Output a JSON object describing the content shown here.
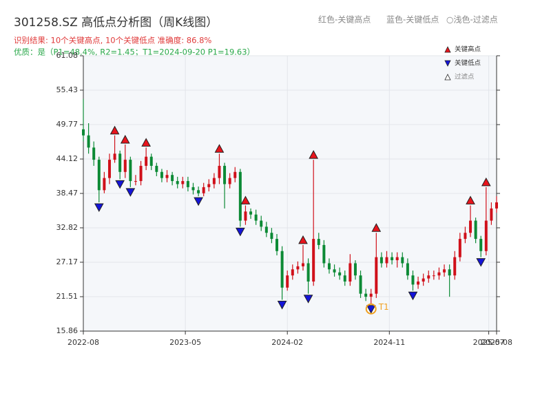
{
  "chart_data": {
    "type": "candlestick",
    "title": "301258.SZ 高低点分析图（周K线图）",
    "header_legend": [
      "红色-关键高点",
      "蓝色-关键低点",
      "○浅色-过滤点"
    ],
    "result_text": "识别结果: 10个关键高点, 10个关键低点  准确度: 86.8%",
    "quality_text": "优质：是（P1=48.4%, R2=1.45；T1=2024-09-20 P1=19.63）",
    "legend": [
      "关键高点",
      "关键低点",
      "过滤点"
    ],
    "up_color": "#d0101a",
    "down_color": "#0c8a35",
    "peak_color": "#e8141c",
    "trough_color": "#1414d8",
    "t1_color": "#f0a020",
    "x": [
      0,
      2,
      4,
      6,
      8,
      10,
      12,
      14,
      16,
      18,
      20,
      22,
      24,
      26,
      28,
      30,
      32,
      34,
      36,
      38,
      40,
      42,
      44,
      46,
      48,
      50,
      52,
      54,
      56,
      58,
      60,
      62,
      64,
      66,
      68,
      70,
      72,
      74,
      76,
      78,
      80,
      82,
      84,
      86,
      88,
      90,
      92,
      94,
      96,
      98,
      100,
      102,
      104,
      106,
      108,
      110,
      112,
      114,
      116,
      118,
      120,
      122,
      124,
      126,
      128,
      130,
      132,
      134,
      136,
      138,
      140,
      142,
      144,
      146,
      148,
      150,
      152,
      154,
      156,
      158
    ],
    "open": [
      49,
      48,
      46,
      44,
      39,
      41,
      44,
      45,
      42,
      44,
      40.5,
      40.5,
      43,
      44.5,
      43,
      42,
      41,
      41.5,
      40.5,
      40,
      40.5,
      39.5,
      39,
      38.5,
      39.5,
      40,
      41,
      43,
      40,
      41,
      42,
      34,
      35.5,
      35,
      34,
      33,
      32,
      31,
      29,
      23,
      25,
      26,
      26.5,
      27,
      24,
      31,
      30,
      27,
      26,
      25.5,
      25,
      24,
      27,
      25,
      22,
      21.5,
      22,
      28,
      27,
      28,
      27.5,
      28,
      27,
      25,
      23.5,
      24,
      24.5,
      25,
      25,
      25.5,
      26,
      25,
      28,
      31,
      32,
      34,
      31,
      29,
      34,
      36
    ],
    "close": [
      48,
      46,
      44,
      39,
      41,
      44,
      45,
      42,
      44,
      40.5,
      40.5,
      43,
      44.5,
      43,
      42,
      41,
      41.5,
      40.5,
      40,
      40.5,
      39.5,
      39,
      38.5,
      39.5,
      40,
      41,
      43,
      40,
      41,
      42,
      34,
      35.5,
      35,
      34,
      33,
      32,
      31,
      29,
      23,
      25,
      26,
      26.5,
      27,
      24,
      31,
      30,
      27,
      26,
      25.5,
      25,
      24,
      27,
      25,
      22,
      21.5,
      22,
      28,
      27,
      28,
      27.5,
      28,
      27,
      25,
      23.5,
      24,
      24.5,
      25,
      25,
      25.5,
      26,
      25,
      28,
      31,
      32,
      34,
      31,
      29,
      34,
      36,
      37
    ],
    "high": [
      54,
      50,
      47,
      44.5,
      42,
      45,
      48,
      45.5,
      46.5,
      44.5,
      41.5,
      43.8,
      46,
      45,
      43.5,
      42.5,
      42.3,
      42,
      41.2,
      41.2,
      41.2,
      40.2,
      39.6,
      40.2,
      40.8,
      41.8,
      45,
      43.5,
      41.8,
      42.8,
      42.5,
      36.5,
      36,
      35.8,
      34.8,
      33.8,
      32.8,
      31.8,
      29.8,
      25.8,
      26.8,
      27.3,
      30,
      27.8,
      44,
      32,
      30.8,
      27.8,
      26.8,
      26.3,
      25.8,
      28.5,
      27.5,
      25.8,
      22.8,
      22.8,
      32,
      28.8,
      29,
      28.8,
      28.8,
      28.8,
      27.8,
      25.8,
      24.8,
      25.3,
      25.8,
      25.8,
      26.3,
      26.8,
      26.8,
      29,
      32,
      33,
      36.5,
      34.5,
      31.5,
      39.5,
      37,
      38
    ],
    "low": [
      47,
      45,
      43,
      37,
      38.5,
      40,
      43.5,
      40.8,
      41,
      39.5,
      39.8,
      39.8,
      42.3,
      42.3,
      41.3,
      40.3,
      40.3,
      39.8,
      39.3,
      39.3,
      38.8,
      38.3,
      38,
      38,
      38.8,
      39.3,
      40,
      36,
      39.3,
      40.3,
      33,
      33.3,
      34.3,
      33.3,
      32.3,
      31.3,
      30.3,
      28.3,
      21,
      22.5,
      24.3,
      25.3,
      25.8,
      22,
      23.3,
      29.3,
      26.3,
      25.3,
      24.8,
      24.3,
      23.3,
      23.3,
      24.3,
      21.3,
      20.8,
      20.3,
      21.3,
      26.3,
      26.3,
      26.8,
      26.3,
      26.3,
      24.3,
      22.5,
      22.8,
      23.3,
      23.8,
      24.3,
      24.3,
      24.8,
      21.5,
      24.3,
      27.3,
      30.3,
      31.3,
      30.3,
      28,
      28.3,
      33.3,
      35.3
    ],
    "peaks": [
      6,
      8,
      12,
      26,
      31,
      42,
      44,
      56,
      74,
      77
    ],
    "troughs": [
      3,
      7,
      9,
      22,
      30,
      38,
      43,
      55,
      63,
      76
    ],
    "t1_index": 55,
    "t1_label": "T1",
    "xlim": [
      0,
      158
    ],
    "xticks": [
      {
        "value": 0,
        "label": "2022-08"
      },
      {
        "value": 39,
        "label": "2023-05"
      },
      {
        "value": 78,
        "label": "2024-02"
      },
      {
        "value": 117,
        "label": "2024-11"
      },
      {
        "value": 155,
        "label": "2025-07"
      },
      {
        "value": 158,
        "label": "2025-08"
      }
    ],
    "ylim": [
      15.86,
      61.08
    ],
    "yticks": [
      15.86,
      21.51,
      27.17,
      32.82,
      38.47,
      44.12,
      49.77,
      55.43,
      61.08
    ],
    "grid": true
  }
}
